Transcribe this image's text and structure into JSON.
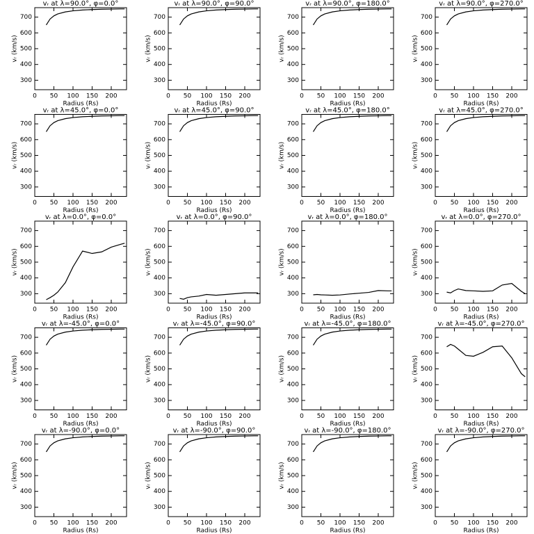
{
  "chart_data": [
    {
      "type": "line",
      "title": "vᵣ at λ=90.0°, φ=0.0°",
      "x_label": "Radius (Rs)",
      "y_label": "vᵣ (km/s)",
      "x": [
        30,
        40,
        50,
        60,
        80,
        100,
        125,
        150,
        175,
        200,
        225,
        235
      ],
      "values": [
        650,
        688,
        708,
        720,
        733,
        740,
        745,
        748,
        750,
        751,
        752,
        752
      ],
      "color": "#000000",
      "xlim": [
        0,
        240
      ],
      "ylim": [
        240,
        760
      ],
      "xticks": [
        0,
        50,
        100,
        150,
        200
      ],
      "yticks": [
        300,
        400,
        500,
        600,
        700
      ]
    },
    {
      "type": "line",
      "title": "vᵣ at λ=90.0°, φ=90.0°",
      "x_label": "Radius (Rs)",
      "y_label": "vᵣ (km/s)",
      "x": [
        30,
        40,
        50,
        60,
        80,
        100,
        125,
        150,
        175,
        200,
        225,
        235
      ],
      "values": [
        650,
        688,
        708,
        720,
        733,
        740,
        745,
        748,
        750,
        751,
        752,
        752
      ],
      "color": "#000000",
      "xlim": [
        0,
        240
      ],
      "ylim": [
        240,
        760
      ],
      "xticks": [
        0,
        50,
        100,
        150,
        200
      ],
      "yticks": [
        300,
        400,
        500,
        600,
        700
      ]
    },
    {
      "type": "line",
      "title": "vᵣ at λ=90.0°, φ=180.0°",
      "x_label": "Radius (Rs)",
      "y_label": "vᵣ (km/s)",
      "x": [
        30,
        40,
        50,
        60,
        80,
        100,
        125,
        150,
        175,
        200,
        225,
        235
      ],
      "values": [
        650,
        688,
        708,
        720,
        733,
        740,
        745,
        748,
        750,
        751,
        752,
        752
      ],
      "color": "#000000",
      "xlim": [
        0,
        240
      ],
      "ylim": [
        240,
        760
      ],
      "xticks": [
        0,
        50,
        100,
        150,
        200
      ],
      "yticks": [
        300,
        400,
        500,
        600,
        700
      ]
    },
    {
      "type": "line",
      "title": "vᵣ at λ=90.0°, φ=270.0°",
      "x_label": "Radius (Rs)",
      "y_label": "vᵣ (km/s)",
      "x": [
        30,
        40,
        50,
        60,
        80,
        100,
        125,
        150,
        175,
        200,
        225,
        235
      ],
      "values": [
        650,
        688,
        708,
        720,
        733,
        740,
        745,
        748,
        750,
        751,
        752,
        752
      ],
      "color": "#000000",
      "xlim": [
        0,
        240
      ],
      "ylim": [
        240,
        760
      ],
      "xticks": [
        0,
        50,
        100,
        150,
        200
      ],
      "yticks": [
        300,
        400,
        500,
        600,
        700
      ]
    },
    {
      "type": "line",
      "title": "vᵣ at λ=45.0°, φ=0.0°",
      "x_label": "Radius (Rs)",
      "y_label": "vᵣ (km/s)",
      "x": [
        30,
        40,
        50,
        60,
        80,
        100,
        125,
        150,
        175,
        200,
        225,
        235
      ],
      "values": [
        650,
        688,
        708,
        720,
        733,
        740,
        745,
        748,
        750,
        751,
        752,
        752
      ],
      "color": "#000000",
      "xlim": [
        0,
        240
      ],
      "ylim": [
        240,
        760
      ],
      "xticks": [
        0,
        50,
        100,
        150,
        200
      ],
      "yticks": [
        300,
        400,
        500,
        600,
        700
      ]
    },
    {
      "type": "line",
      "title": "vᵣ at λ=45.0°, φ=90.0°",
      "x_label": "Radius (Rs)",
      "y_label": "vᵣ (km/s)",
      "x": [
        30,
        40,
        50,
        60,
        80,
        100,
        125,
        150,
        175,
        200,
        225,
        235
      ],
      "values": [
        650,
        688,
        708,
        720,
        733,
        740,
        745,
        748,
        750,
        751,
        752,
        752
      ],
      "color": "#000000",
      "xlim": [
        0,
        240
      ],
      "ylim": [
        240,
        760
      ],
      "xticks": [
        0,
        50,
        100,
        150,
        200
      ],
      "yticks": [
        300,
        400,
        500,
        600,
        700
      ]
    },
    {
      "type": "line",
      "title": "vᵣ at λ=45.0°, φ=180.0°",
      "x_label": "Radius (Rs)",
      "y_label": "vᵣ (km/s)",
      "x": [
        30,
        40,
        50,
        60,
        80,
        100,
        125,
        150,
        175,
        200,
        225,
        235
      ],
      "values": [
        650,
        688,
        708,
        720,
        733,
        740,
        745,
        748,
        750,
        751,
        752,
        752
      ],
      "color": "#000000",
      "xlim": [
        0,
        240
      ],
      "ylim": [
        240,
        760
      ],
      "xticks": [
        0,
        50,
        100,
        150,
        200
      ],
      "yticks": [
        300,
        400,
        500,
        600,
        700
      ]
    },
    {
      "type": "line",
      "title": "vᵣ at λ=45.0°, φ=270.0°",
      "x_label": "Radius (Rs)",
      "y_label": "vᵣ (km/s)",
      "x": [
        30,
        40,
        50,
        60,
        80,
        100,
        125,
        150,
        175,
        200,
        225,
        235
      ],
      "values": [
        650,
        688,
        708,
        720,
        733,
        740,
        745,
        748,
        750,
        751,
        752,
        752
      ],
      "color": "#000000",
      "xlim": [
        0,
        240
      ],
      "ylim": [
        240,
        760
      ],
      "xticks": [
        0,
        50,
        100,
        150,
        200
      ],
      "yticks": [
        300,
        400,
        500,
        600,
        700
      ]
    },
    {
      "type": "line",
      "title": "vᵣ at λ=0.0°, φ=0.0°",
      "x_label": "Radius (Rs)",
      "y_label": "vᵣ (km/s)",
      "x": [
        30,
        40,
        50,
        60,
        80,
        100,
        125,
        150,
        175,
        200,
        225,
        235
      ],
      "values": [
        262,
        275,
        290,
        310,
        370,
        470,
        570,
        555,
        565,
        595,
        613,
        620
      ],
      "color": "#000000",
      "xlim": [
        0,
        240
      ],
      "ylim": [
        240,
        760
      ],
      "xticks": [
        0,
        50,
        100,
        150,
        200
      ],
      "yticks": [
        300,
        400,
        500,
        600,
        700
      ]
    },
    {
      "type": "line",
      "title": "vᵣ at λ=0.0°, φ=90.0°",
      "x_label": "Radius (Rs)",
      "y_label": "vᵣ (km/s)",
      "x": [
        30,
        40,
        50,
        60,
        80,
        100,
        125,
        150,
        175,
        200,
        225,
        235
      ],
      "values": [
        270,
        265,
        275,
        280,
        285,
        295,
        290,
        295,
        300,
        305,
        305,
        305
      ],
      "color": "#000000",
      "xlim": [
        0,
        240
      ],
      "ylim": [
        240,
        760
      ],
      "xticks": [
        0,
        50,
        100,
        150,
        200
      ],
      "yticks": [
        300,
        400,
        500,
        600,
        700
      ]
    },
    {
      "type": "line",
      "title": "vᵣ at λ=0.0°, φ=180.0°",
      "x_label": "Radius (Rs)",
      "y_label": "vᵣ (km/s)",
      "x": [
        30,
        40,
        50,
        60,
        80,
        100,
        125,
        150,
        175,
        200,
        225,
        235
      ],
      "values": [
        293,
        295,
        293,
        292,
        290,
        292,
        298,
        303,
        308,
        320,
        318,
        318
      ],
      "color": "#000000",
      "xlim": [
        0,
        240
      ],
      "ylim": [
        240,
        760
      ],
      "xticks": [
        0,
        50,
        100,
        150,
        200
      ],
      "yticks": [
        300,
        400,
        500,
        600,
        700
      ]
    },
    {
      "type": "line",
      "title": "vᵣ at λ=0.0°, φ=270.0°",
      "x_label": "Radius (Rs)",
      "y_label": "vᵣ (km/s)",
      "x": [
        30,
        40,
        50,
        60,
        80,
        100,
        125,
        150,
        175,
        200,
        225,
        235
      ],
      "values": [
        310,
        305,
        320,
        330,
        320,
        318,
        315,
        318,
        355,
        365,
        315,
        300
      ],
      "color": "#000000",
      "xlim": [
        0,
        240
      ],
      "ylim": [
        240,
        760
      ],
      "xticks": [
        0,
        50,
        100,
        150,
        200
      ],
      "yticks": [
        300,
        400,
        500,
        600,
        700
      ]
    },
    {
      "type": "line",
      "title": "vᵣ at λ=-45.0°, φ=0.0°",
      "x_label": "Radius (Rs)",
      "y_label": "vᵣ (km/s)",
      "x": [
        30,
        40,
        50,
        60,
        80,
        100,
        125,
        150,
        175,
        200,
        225,
        235
      ],
      "values": [
        650,
        688,
        708,
        720,
        733,
        740,
        745,
        748,
        750,
        751,
        752,
        752
      ],
      "color": "#000000",
      "xlim": [
        0,
        240
      ],
      "ylim": [
        240,
        760
      ],
      "xticks": [
        0,
        50,
        100,
        150,
        200
      ],
      "yticks": [
        300,
        400,
        500,
        600,
        700
      ]
    },
    {
      "type": "line",
      "title": "vᵣ at λ=-45.0°, φ=90.0°",
      "x_label": "Radius (Rs)",
      "y_label": "vᵣ (km/s)",
      "x": [
        30,
        40,
        50,
        60,
        80,
        100,
        125,
        150,
        175,
        200,
        225,
        235
      ],
      "values": [
        650,
        688,
        708,
        720,
        733,
        740,
        745,
        748,
        750,
        751,
        752,
        752
      ],
      "color": "#000000",
      "xlim": [
        0,
        240
      ],
      "ylim": [
        240,
        760
      ],
      "xticks": [
        0,
        50,
        100,
        150,
        200
      ],
      "yticks": [
        300,
        400,
        500,
        600,
        700
      ]
    },
    {
      "type": "line",
      "title": "vᵣ at λ=-45.0°, φ=180.0°",
      "x_label": "Radius (Rs)",
      "y_label": "vᵣ (km/s)",
      "x": [
        30,
        40,
        50,
        60,
        80,
        100,
        125,
        150,
        175,
        200,
        225,
        235
      ],
      "values": [
        650,
        688,
        708,
        720,
        733,
        740,
        745,
        748,
        750,
        751,
        752,
        752
      ],
      "color": "#000000",
      "xlim": [
        0,
        240
      ],
      "ylim": [
        240,
        760
      ],
      "xticks": [
        0,
        50,
        100,
        150,
        200
      ],
      "yticks": [
        300,
        400,
        500,
        600,
        700
      ]
    },
    {
      "type": "line",
      "title": "vᵣ at λ=-45.0°, φ=270.0°",
      "x_label": "Radius (Rs)",
      "y_label": "vᵣ (km/s)",
      "x": [
        30,
        40,
        50,
        60,
        80,
        100,
        125,
        150,
        175,
        200,
        225,
        235
      ],
      "values": [
        640,
        655,
        645,
        625,
        585,
        580,
        605,
        640,
        645,
        570,
        470,
        450
      ],
      "color": "#000000",
      "xlim": [
        0,
        240
      ],
      "ylim": [
        240,
        760
      ],
      "xticks": [
        0,
        50,
        100,
        150,
        200
      ],
      "yticks": [
        300,
        400,
        500,
        600,
        700
      ]
    },
    {
      "type": "line",
      "title": "vᵣ at λ=-90.0°, φ=0.0°",
      "x_label": "Radius (Rs)",
      "y_label": "vᵣ (km/s)",
      "x": [
        30,
        40,
        50,
        60,
        80,
        100,
        125,
        150,
        175,
        200,
        225,
        235
      ],
      "values": [
        650,
        688,
        708,
        720,
        733,
        740,
        745,
        748,
        750,
        751,
        752,
        752
      ],
      "color": "#000000",
      "xlim": [
        0,
        240
      ],
      "ylim": [
        240,
        760
      ],
      "xticks": [
        0,
        50,
        100,
        150,
        200
      ],
      "yticks": [
        300,
        400,
        500,
        600,
        700
      ]
    },
    {
      "type": "line",
      "title": "vᵣ at λ=-90.0°, φ=90.0°",
      "x_label": "Radius (Rs)",
      "y_label": "vᵣ (km/s)",
      "x": [
        30,
        40,
        50,
        60,
        80,
        100,
        125,
        150,
        175,
        200,
        225,
        235
      ],
      "values": [
        650,
        688,
        708,
        720,
        733,
        740,
        745,
        748,
        750,
        751,
        752,
        752
      ],
      "color": "#000000",
      "xlim": [
        0,
        240
      ],
      "ylim": [
        240,
        760
      ],
      "xticks": [
        0,
        50,
        100,
        150,
        200
      ],
      "yticks": [
        300,
        400,
        500,
        600,
        700
      ]
    },
    {
      "type": "line",
      "title": "vᵣ at λ=-90.0°, φ=180.0°",
      "x_label": "Radius (Rs)",
      "y_label": "vᵣ (km/s)",
      "x": [
        30,
        40,
        50,
        60,
        80,
        100,
        125,
        150,
        175,
        200,
        225,
        235
      ],
      "values": [
        650,
        688,
        708,
        720,
        733,
        740,
        745,
        748,
        750,
        751,
        752,
        752
      ],
      "color": "#000000",
      "xlim": [
        0,
        240
      ],
      "ylim": [
        240,
        760
      ],
      "xticks": [
        0,
        50,
        100,
        150,
        200
      ],
      "yticks": [
        300,
        400,
        500,
        600,
        700
      ]
    },
    {
      "type": "line",
      "title": "vᵣ at λ=-90.0°, φ=270.0°",
      "x_label": "Radius (Rs)",
      "y_label": "vᵣ (km/s)",
      "x": [
        30,
        40,
        50,
        60,
        80,
        100,
        125,
        150,
        175,
        200,
        225,
        235
      ],
      "values": [
        650,
        688,
        708,
        720,
        733,
        740,
        745,
        748,
        750,
        751,
        752,
        752
      ],
      "color": "#000000",
      "xlim": [
        0,
        240
      ],
      "ylim": [
        240,
        760
      ],
      "xticks": [
        0,
        50,
        100,
        150,
        200
      ],
      "yticks": [
        300,
        400,
        500,
        600,
        700
      ]
    }
  ]
}
